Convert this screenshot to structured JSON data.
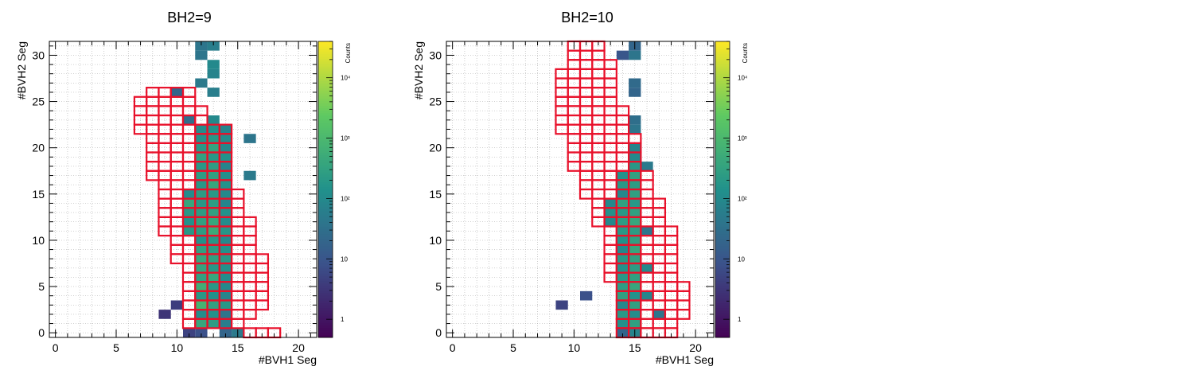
{
  "chart_data": [
    {
      "type": "heatmap",
      "title": "BH2=9",
      "xlabel": "#BVH1 Seg",
      "ylabel": "#BVH2 Seg",
      "colorbar_label": "Counts",
      "xlim": [
        -0.5,
        21.5
      ],
      "ylim": [
        -0.5,
        31.5
      ],
      "x_ticks": [
        "0",
        "5",
        "10",
        "15",
        "20"
      ],
      "y_ticks": [
        "0",
        "5",
        "10",
        "15",
        "20",
        "25",
        "30"
      ],
      "z_ticks": [
        "1",
        "10",
        "10²",
        "10³",
        "10⁴"
      ],
      "zlim": [
        0.5,
        40000
      ],
      "grid": true,
      "log_z": true,
      "colormap": [
        "#440154",
        "#3b528b",
        "#21918c",
        "#5ec962",
        "#fde725"
      ],
      "outline_color": "#e8102a",
      "cuts": [
        [
          0,
          16,
          18
        ],
        [
          1,
          11,
          15
        ],
        [
          2,
          11,
          16
        ],
        [
          3,
          11,
          17
        ],
        [
          4,
          11,
          17
        ],
        [
          5,
          11,
          17
        ],
        [
          6,
          11,
          17
        ],
        [
          7,
          11,
          17
        ],
        [
          8,
          10,
          17
        ],
        [
          9,
          10,
          16
        ],
        [
          10,
          10,
          16
        ],
        [
          11,
          9,
          16
        ],
        [
          12,
          9,
          16
        ],
        [
          13,
          9,
          15
        ],
        [
          14,
          9,
          15
        ],
        [
          15,
          9,
          15
        ],
        [
          16,
          9,
          14
        ],
        [
          17,
          8,
          14
        ],
        [
          18,
          8,
          14
        ],
        [
          19,
          8,
          14
        ],
        [
          20,
          8,
          14
        ],
        [
          21,
          8,
          14
        ],
        [
          22,
          7,
          14
        ],
        [
          23,
          7,
          12
        ],
        [
          24,
          7,
          12
        ],
        [
          25,
          7,
          11
        ],
        [
          26,
          8,
          11
        ]
      ],
      "cells": [
        [
          14,
          0,
          20
        ],
        [
          15,
          0,
          50
        ],
        [
          11,
          0,
          5
        ],
        [
          12,
          0,
          8
        ],
        [
          13,
          1,
          250
        ],
        [
          14,
          1,
          60
        ],
        [
          12,
          1,
          400
        ],
        [
          9,
          2,
          3
        ],
        [
          13,
          2,
          150
        ],
        [
          14,
          2,
          40
        ],
        [
          12,
          2,
          120
        ],
        [
          10,
          3,
          4
        ],
        [
          12,
          3,
          800
        ],
        [
          13,
          3,
          300
        ],
        [
          14,
          3,
          200
        ],
        [
          12,
          4,
          200
        ],
        [
          13,
          4,
          150
        ],
        [
          14,
          4,
          80
        ],
        [
          12,
          5,
          600
        ],
        [
          13,
          5,
          200
        ],
        [
          14,
          5,
          100
        ],
        [
          12,
          6,
          300
        ],
        [
          13,
          6,
          400
        ],
        [
          14,
          6,
          120
        ],
        [
          12,
          7,
          350
        ],
        [
          13,
          7,
          200
        ],
        [
          14,
          7,
          150
        ],
        [
          12,
          8,
          400
        ],
        [
          13,
          8,
          300
        ],
        [
          14,
          8,
          200
        ],
        [
          12,
          9,
          300
        ],
        [
          13,
          9,
          250
        ],
        [
          14,
          9,
          150
        ],
        [
          12,
          10,
          150
        ],
        [
          13,
          10,
          200
        ],
        [
          14,
          10,
          100
        ],
        [
          11,
          11,
          200
        ],
        [
          12,
          11,
          250
        ],
        [
          13,
          11,
          500
        ],
        [
          14,
          11,
          180
        ],
        [
          11,
          12,
          150
        ],
        [
          12,
          12,
          300
        ],
        [
          13,
          12,
          400
        ],
        [
          14,
          12,
          120
        ],
        [
          11,
          13,
          200
        ],
        [
          12,
          13,
          250
        ],
        [
          13,
          13,
          300
        ],
        [
          14,
          13,
          150
        ],
        [
          11,
          14,
          400
        ],
        [
          12,
          14,
          200
        ],
        [
          13,
          14,
          250
        ],
        [
          14,
          14,
          80
        ],
        [
          11,
          15,
          120
        ],
        [
          12,
          15,
          250
        ],
        [
          13,
          15,
          200
        ],
        [
          14,
          15,
          100
        ],
        [
          12,
          16,
          200
        ],
        [
          13,
          16,
          400
        ],
        [
          14,
          16,
          150
        ],
        [
          16,
          17,
          50
        ],
        [
          12,
          17,
          250
        ],
        [
          13,
          17,
          300
        ],
        [
          14,
          17,
          130
        ],
        [
          12,
          18,
          200
        ],
        [
          13,
          18,
          250
        ],
        [
          14,
          18,
          80
        ],
        [
          12,
          19,
          300
        ],
        [
          13,
          19,
          200
        ],
        [
          14,
          19,
          150
        ],
        [
          12,
          20,
          200
        ],
        [
          13,
          20,
          350
        ],
        [
          14,
          20,
          100
        ],
        [
          12,
          21,
          150
        ],
        [
          13,
          21,
          200
        ],
        [
          14,
          21,
          120
        ],
        [
          16,
          21,
          40
        ],
        [
          12,
          22,
          120
        ],
        [
          13,
          22,
          150
        ],
        [
          14,
          22,
          80
        ],
        [
          11,
          23,
          30
        ],
        [
          13,
          23,
          100
        ],
        [
          10,
          26,
          20
        ],
        [
          13,
          26,
          60
        ],
        [
          12,
          27,
          50
        ],
        [
          13,
          28,
          80
        ],
        [
          13,
          29,
          100
        ],
        [
          12,
          30,
          40
        ],
        [
          12,
          31,
          40
        ],
        [
          13,
          31,
          60
        ]
      ]
    },
    {
      "type": "heatmap",
      "title": "BH2=10",
      "xlabel": "#BVH1 Seg",
      "ylabel": "#BVH2 Seg",
      "colorbar_label": "Counts",
      "xlim": [
        -0.5,
        21.5
      ],
      "ylim": [
        -0.5,
        31.5
      ],
      "x_ticks": [
        "0",
        "5",
        "10",
        "15",
        "20"
      ],
      "y_ticks": [
        "0",
        "5",
        "10",
        "15",
        "20",
        "25",
        "30"
      ],
      "z_ticks": [
        "1",
        "10",
        "10²",
        "10³",
        "10⁴"
      ],
      "zlim": [
        0.5,
        40000
      ],
      "grid": true,
      "log_z": true,
      "colormap": [
        "#440154",
        "#3b528b",
        "#21918c",
        "#5ec962",
        "#fde725"
      ],
      "outline_color": "#e8102a",
      "cuts": [
        [
          0,
          14,
          18
        ],
        [
          1,
          14,
          18
        ],
        [
          2,
          14,
          19
        ],
        [
          3,
          14,
          19
        ],
        [
          4,
          14,
          19
        ],
        [
          5,
          14,
          19
        ],
        [
          6,
          13,
          18
        ],
        [
          7,
          13,
          18
        ],
        [
          8,
          13,
          18
        ],
        [
          9,
          13,
          18
        ],
        [
          10,
          13,
          18
        ],
        [
          11,
          13,
          18
        ],
        [
          12,
          12,
          17
        ],
        [
          13,
          12,
          17
        ],
        [
          14,
          12,
          17
        ],
        [
          15,
          11,
          16
        ],
        [
          16,
          11,
          16
        ],
        [
          17,
          11,
          16
        ],
        [
          18,
          10,
          15
        ],
        [
          19,
          10,
          15
        ],
        [
          20,
          10,
          15
        ],
        [
          21,
          10,
          15
        ],
        [
          22,
          9,
          14
        ],
        [
          23,
          9,
          14
        ],
        [
          24,
          9,
          14
        ],
        [
          25,
          9,
          13
        ],
        [
          26,
          9,
          13
        ],
        [
          27,
          9,
          13
        ],
        [
          28,
          9,
          13
        ],
        [
          29,
          10,
          13
        ],
        [
          30,
          10,
          12
        ],
        [
          31,
          10,
          12
        ]
      ],
      "cells": [
        [
          14,
          0,
          20
        ],
        [
          15,
          0,
          80
        ],
        [
          14,
          1,
          150
        ],
        [
          15,
          1,
          300
        ],
        [
          17,
          2,
          40
        ],
        [
          14,
          2,
          200
        ],
        [
          15,
          2,
          120
        ],
        [
          14,
          3,
          100
        ],
        [
          15,
          3,
          300
        ],
        [
          14,
          4,
          300
        ],
        [
          15,
          4,
          150
        ],
        [
          16,
          4,
          80
        ],
        [
          14,
          5,
          250
        ],
        [
          15,
          5,
          400
        ],
        [
          14,
          6,
          200
        ],
        [
          15,
          6,
          300
        ],
        [
          14,
          7,
          150
        ],
        [
          15,
          7,
          250
        ],
        [
          16,
          7,
          100
        ],
        [
          14,
          8,
          200
        ],
        [
          15,
          8,
          300
        ],
        [
          14,
          9,
          100
        ],
        [
          15,
          9,
          400
        ],
        [
          14,
          10,
          150
        ],
        [
          15,
          10,
          300
        ],
        [
          16,
          11,
          40
        ],
        [
          14,
          11,
          200
        ],
        [
          15,
          11,
          250
        ],
        [
          13,
          12,
          100
        ],
        [
          14,
          12,
          250
        ],
        [
          15,
          12,
          400
        ],
        [
          13,
          13,
          150
        ],
        [
          14,
          13,
          200
        ],
        [
          15,
          13,
          300
        ],
        [
          13,
          14,
          100
        ],
        [
          14,
          14,
          300
        ],
        [
          15,
          14,
          200
        ],
        [
          14,
          15,
          100
        ],
        [
          15,
          15,
          300
        ],
        [
          14,
          16,
          200
        ],
        [
          15,
          16,
          250
        ],
        [
          14,
          17,
          150
        ],
        [
          15,
          17,
          300
        ],
        [
          15,
          18,
          200
        ],
        [
          16,
          18,
          50
        ],
        [
          15,
          19,
          100
        ],
        [
          15,
          20,
          80
        ],
        [
          15,
          22,
          40
        ],
        [
          15,
          23,
          30
        ],
        [
          15,
          26,
          20
        ],
        [
          15,
          27,
          25
        ],
        [
          15,
          30,
          40
        ],
        [
          15,
          31,
          20
        ],
        [
          14,
          30,
          10
        ],
        [
          9,
          3,
          5
        ],
        [
          11,
          4,
          8
        ]
      ]
    }
  ]
}
